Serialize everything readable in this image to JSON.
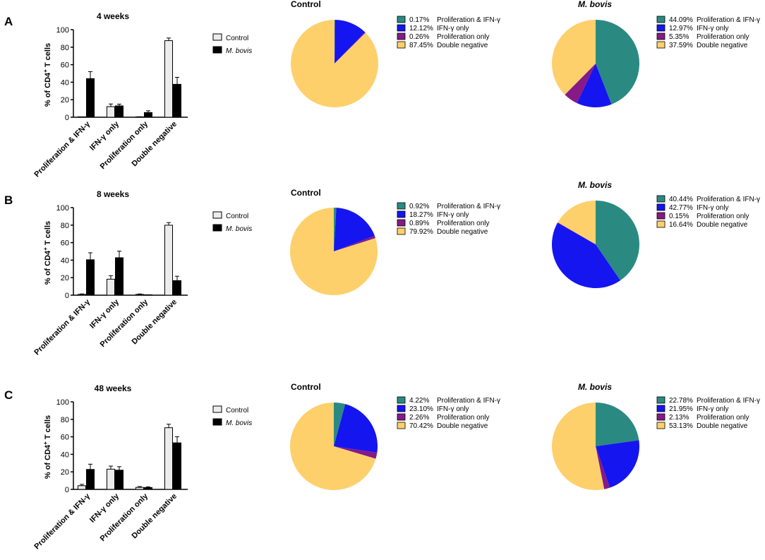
{
  "colors": {
    "control_bar": "#ececec",
    "mbovis_bar": "#000000",
    "prolif_ifng": "#2a8a82",
    "ifng_only": "#1515f0",
    "prolif_only": "#861a86",
    "double_neg": "#fed06c"
  },
  "legend": {
    "control": "Control",
    "mbovis": "M. bovis"
  },
  "ylabel_main": "% of CD4",
  "ylabel_sup": "+",
  "ylabel_tail": " T cells",
  "chart_data": [
    {
      "type": "bar",
      "panel": "A",
      "title": "4 weeks",
      "categories": [
        "Proliferation & IFN-γ",
        "IFN-γ only",
        "Proliferation only",
        "Double negative"
      ],
      "ylim": [
        0,
        100
      ],
      "yticks": [
        "0",
        "20",
        "40",
        "60",
        "80",
        "100"
      ],
      "series": [
        {
          "name": "Control",
          "values": [
            0.17,
            12.12,
            0.26,
            87.45
          ],
          "errors": [
            0.2,
            3.0,
            0.3,
            3.0
          ]
        },
        {
          "name": "M. bovis",
          "values": [
            44.09,
            12.97,
            5.35,
            37.59
          ],
          "errors": [
            8.0,
            2.0,
            2.0,
            8.0
          ]
        }
      ]
    },
    {
      "type": "pie",
      "panel": "A",
      "title": "Control",
      "labels": [
        "Proliferation & IFN-γ",
        "IFN-γ only",
        "Proliferation only",
        "Double negative"
      ],
      "values": [
        0.17,
        12.12,
        0.26,
        87.45
      ],
      "legend_values": [
        "0.17%",
        "12.12%",
        "0.26%",
        "87.45%"
      ]
    },
    {
      "type": "pie",
      "panel": "A",
      "title": "M. bovis",
      "labels": [
        "Proliferation & IFN-γ",
        "IFN-γ only",
        "Proliferation only",
        "Double negative"
      ],
      "values": [
        44.09,
        12.97,
        5.35,
        37.59
      ],
      "legend_values": [
        "44.09%",
        "12.97%",
        "5.35%",
        "37.59%"
      ]
    },
    {
      "type": "bar",
      "panel": "B",
      "title": "8 weeks",
      "categories": [
        "Proliferation & IFN-γ",
        "IFN-γ only",
        "Proliferation only",
        "Double negative"
      ],
      "ylim": [
        0,
        100
      ],
      "yticks": [
        "0",
        "20",
        "40",
        "60",
        "80",
        "100"
      ],
      "series": [
        {
          "name": "Control",
          "values": [
            0.92,
            18.27,
            0.89,
            79.92
          ],
          "errors": [
            0.5,
            4.0,
            0.5,
            3.0
          ]
        },
        {
          "name": "M. bovis",
          "values": [
            40.44,
            42.77,
            0.15,
            16.64
          ],
          "errors": [
            8.0,
            7.5,
            0.2,
            5.0
          ]
        }
      ]
    },
    {
      "type": "pie",
      "panel": "B",
      "title": "Control",
      "labels": [
        "Proliferation & IFN-γ",
        "IFN-γ only",
        "Proliferation only",
        "Double negative"
      ],
      "values": [
        0.92,
        18.27,
        0.89,
        79.92
      ],
      "legend_values": [
        "0.92%",
        "18.27%",
        "0.89%",
        "79.92%"
      ]
    },
    {
      "type": "pie",
      "panel": "B",
      "title": "M. bovis",
      "labels": [
        "Proliferation & IFN-γ",
        "IFN-γ only",
        "Proliferation only",
        "Double negative"
      ],
      "values": [
        40.44,
        42.77,
        0.15,
        16.64
      ],
      "legend_values": [
        "40.44%",
        "42.77%",
        "0.15%",
        "16.64%"
      ]
    },
    {
      "type": "bar",
      "panel": "C",
      "title": "48 weeks",
      "categories": [
        "Proliferation & IFN-γ",
        "IFN-γ only",
        "Proliferation only",
        "Double negative"
      ],
      "ylim": [
        0,
        100
      ],
      "yticks": [
        "0",
        "20",
        "40",
        "60",
        "80",
        "100"
      ],
      "series": [
        {
          "name": "Control",
          "values": [
            4.22,
            23.1,
            2.26,
            70.42
          ],
          "errors": [
            1.5,
            3.5,
            1.0,
            4.0
          ]
        },
        {
          "name": "M. bovis",
          "values": [
            22.78,
            21.95,
            2.13,
            53.13
          ],
          "errors": [
            6.0,
            4.0,
            0.8,
            7.0
          ]
        }
      ]
    },
    {
      "type": "pie",
      "panel": "C",
      "title": "Control",
      "labels": [
        "Proliferation & IFN-γ",
        "IFN-γ only",
        "Proliferation only",
        "Double negative"
      ],
      "values": [
        4.22,
        23.1,
        2.26,
        70.42
      ],
      "legend_values": [
        "4.22%",
        "23.10%",
        "2.26%",
        "70.42%"
      ]
    },
    {
      "type": "pie",
      "panel": "C",
      "title": "M. bovis",
      "labels": [
        "Proliferation & IFN-γ",
        "IFN-γ only",
        "Proliferation only",
        "Double negative"
      ],
      "values": [
        22.78,
        21.95,
        2.13,
        53.13
      ],
      "legend_values": [
        "22.78%",
        "21.95%",
        "2.13%",
        "53.13%"
      ]
    }
  ]
}
